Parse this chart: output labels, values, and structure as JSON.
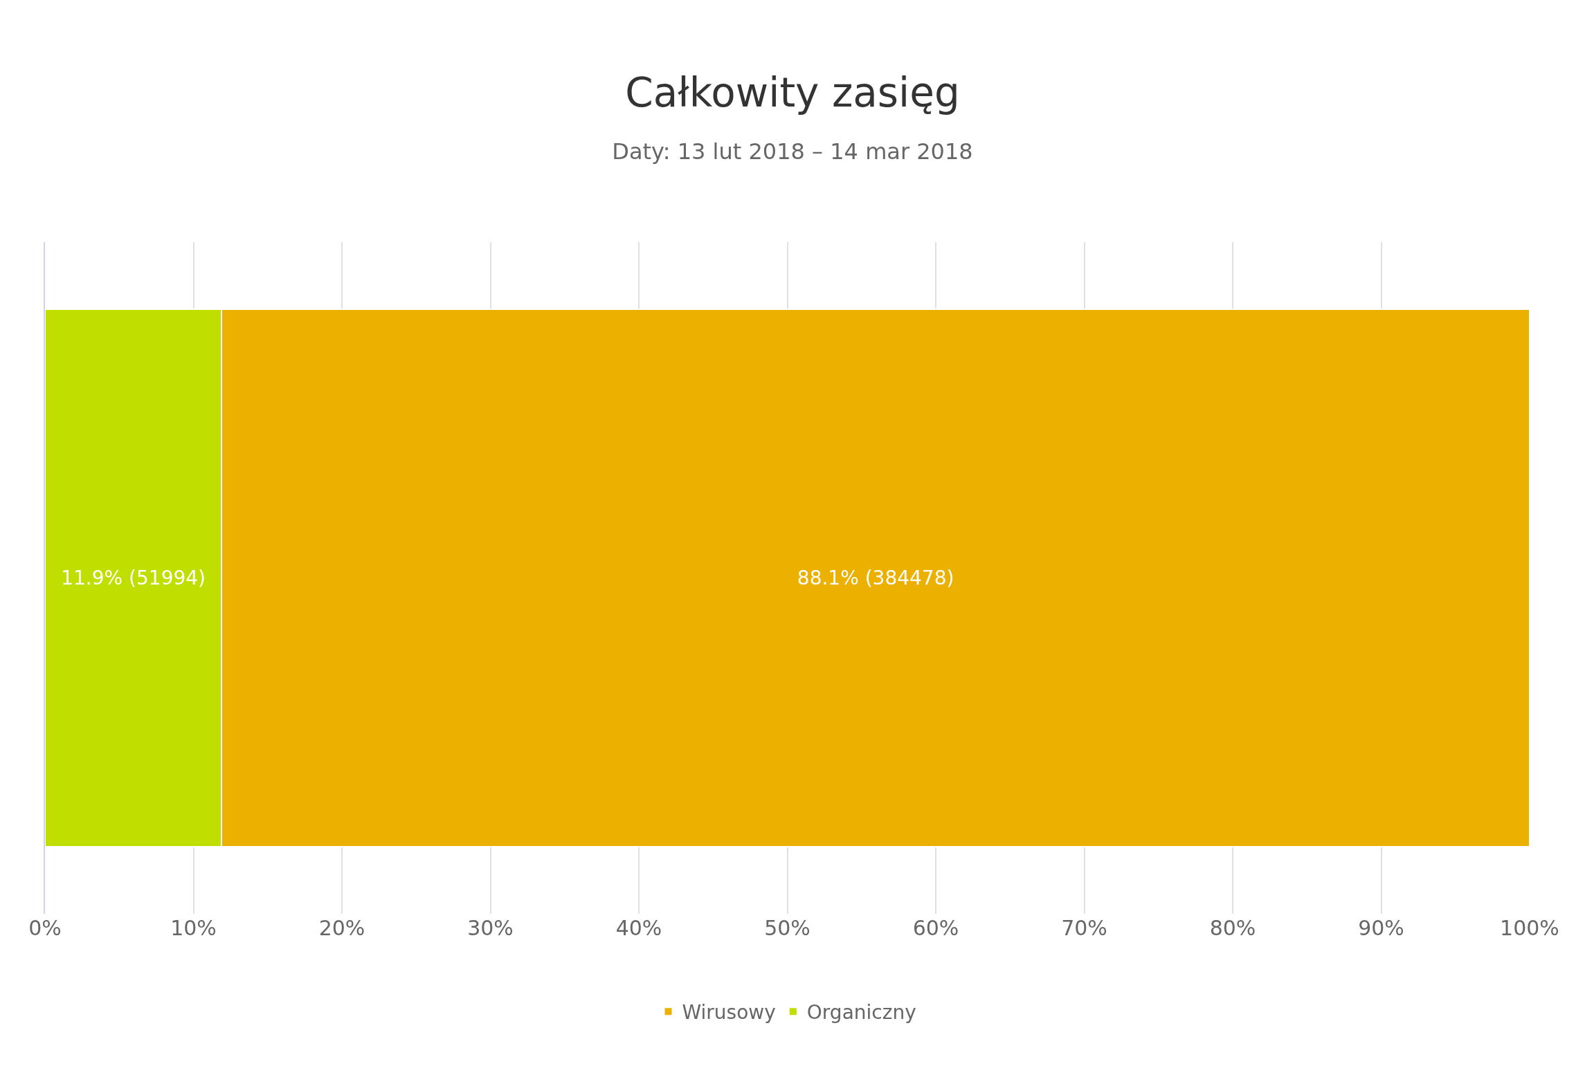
{
  "chart_data": {
    "type": "bar",
    "orientation": "horizontal",
    "stacked": true,
    "title": "Całkowity zasięg",
    "subtitle": "Daty: 13 lut 2018 – 14 mar 2018",
    "categories": [
      null
    ],
    "series": [
      {
        "name": "Organiczny",
        "color": "#c0de00",
        "values": [
          11.9
        ],
        "value_labels": [
          "11.9% (51994)"
        ]
      },
      {
        "name": "Wirusowy",
        "color": "#ebb000",
        "values": [
          88.1
        ],
        "value_labels": [
          "88.1% (384478)"
        ]
      }
    ],
    "xlim": [
      0,
      100
    ],
    "xticks": [
      {
        "value": 0,
        "label": "0%"
      },
      {
        "value": 10,
        "label": "10%"
      },
      {
        "value": 20,
        "label": "20%"
      },
      {
        "value": 30,
        "label": "30%"
      },
      {
        "value": 40,
        "label": "40%"
      },
      {
        "value": 50,
        "label": "50%"
      },
      {
        "value": 60,
        "label": "60%"
      },
      {
        "value": 70,
        "label": "70%"
      },
      {
        "value": 80,
        "label": "80%"
      },
      {
        "value": 90,
        "label": "90%"
      },
      {
        "value": 100,
        "label": "100%"
      }
    ],
    "grid": "x",
    "legend": "bottom"
  }
}
